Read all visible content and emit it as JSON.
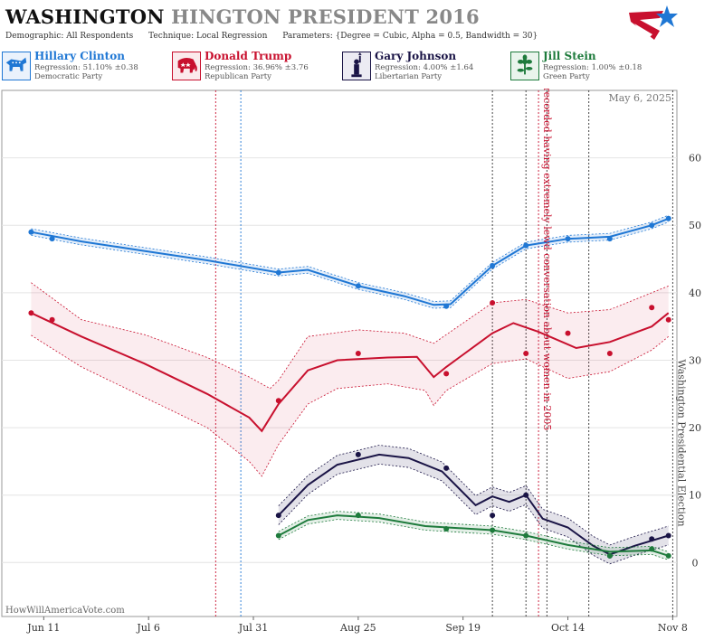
{
  "header": {
    "title_state": "WASHINGTON",
    "title_rest": "HINGTON PRESIDENT 2016",
    "demographic": "Demographic: All Respondents",
    "technique": "Technique: Local Regression",
    "parameters": "Parameters: {Degree = Cubic, Alpha = 0.5, Bandwidth = 30}"
  },
  "candidates": [
    {
      "name": "Hillary Clinton",
      "regression": "Regression: 51.10% ±0.38",
      "party": "Democratic Party",
      "color": "#1f77d4",
      "icon": "donkey-icon"
    },
    {
      "name": "Donald Trump",
      "regression": "Regression: 36.96% ±3.76",
      "party": "Republican Party",
      "color": "#c8102e",
      "icon": "elephant-icon"
    },
    {
      "name": "Gary Johnson",
      "regression": "Regression: 4.00% ±1.64",
      "party": "Libertarian Party",
      "color": "#1a1446",
      "icon": "liberty-icon"
    },
    {
      "name": "Jill Stein",
      "regression": "Regression: 1.00% ±0.18",
      "party": "Green Party",
      "color": "#1e7b3c",
      "icon": "flower-icon"
    }
  ],
  "chart_data": {
    "type": "line",
    "date_label": "May 6, 2025",
    "watermark": "HowWillAmericaVote.com",
    "ylim": [
      -8,
      70
    ],
    "yticks": [
      0,
      10,
      20,
      30,
      40,
      50,
      60
    ],
    "xlim": [
      "2016-06-01",
      "2016-11-09"
    ],
    "xticks": [
      {
        "date": "2016-06-11",
        "label": "Jun 11"
      },
      {
        "date": "2016-07-06",
        "label": "Jul 6"
      },
      {
        "date": "2016-07-31",
        "label": "Jul 31"
      },
      {
        "date": "2016-08-25",
        "label": "Aug 25"
      },
      {
        "date": "2016-09-19",
        "label": "Sep 19"
      },
      {
        "date": "2016-10-14",
        "label": "Oct 14"
      },
      {
        "date": "2016-11-08",
        "label": "Nov 8"
      }
    ],
    "annotations": [
      {
        "date": "2016-10-07",
        "text": "Trump recorded having extremely lewd conversation about women in 2005",
        "color": "#c8102e"
      },
      {
        "date": "2016-11-08",
        "text": "Washington Presidential Election",
        "color": "#444444"
      }
    ],
    "vlines": [
      {
        "date": "2016-07-22",
        "color": "#c8102e"
      },
      {
        "date": "2016-07-28",
        "color": "#1f77d4"
      },
      {
        "date": "2016-09-26",
        "color": "#333333"
      },
      {
        "date": "2016-10-04",
        "color": "#333333"
      },
      {
        "date": "2016-10-07",
        "color": "#c8102e"
      },
      {
        "date": "2016-10-09",
        "color": "#333333"
      },
      {
        "date": "2016-10-19",
        "color": "#333333"
      },
      {
        "date": "2016-11-08",
        "color": "#333333"
      }
    ],
    "series": [
      {
        "name": "Hillary Clinton",
        "color": "#1f77d4",
        "band_fill": "rgba(31,119,212,0.12)",
        "points": [
          [
            "2016-06-08",
            49
          ],
          [
            "2016-06-13",
            48
          ],
          [
            "2016-08-06",
            43
          ],
          [
            "2016-08-25",
            41
          ],
          [
            "2016-09-15",
            38
          ],
          [
            "2016-09-26",
            44
          ],
          [
            "2016-10-04",
            47
          ],
          [
            "2016-10-14",
            48
          ],
          [
            "2016-10-24",
            48
          ],
          [
            "2016-11-03",
            50
          ],
          [
            "2016-11-07",
            51
          ]
        ],
        "trend": [
          [
            "2016-06-08",
            49
          ],
          [
            "2016-06-20",
            47.6
          ],
          [
            "2016-07-05",
            46.2
          ],
          [
            "2016-07-20",
            44.8
          ],
          [
            "2016-08-06",
            43
          ],
          [
            "2016-08-13",
            43.4
          ],
          [
            "2016-08-25",
            41
          ],
          [
            "2016-09-05",
            39.5
          ],
          [
            "2016-09-12",
            38.2
          ],
          [
            "2016-09-16",
            38.3
          ],
          [
            "2016-09-26",
            44
          ],
          [
            "2016-10-04",
            47
          ],
          [
            "2016-10-14",
            48
          ],
          [
            "2016-10-24",
            48.3
          ],
          [
            "2016-11-03",
            50
          ],
          [
            "2016-11-07",
            51
          ]
        ],
        "band": 0.5
      },
      {
        "name": "Donald Trump",
        "color": "#c8102e",
        "band_fill": "rgba(200,16,46,0.08)",
        "points": [
          [
            "2016-06-08",
            37
          ],
          [
            "2016-06-13",
            36
          ],
          [
            "2016-08-06",
            24
          ],
          [
            "2016-08-25",
            31
          ],
          [
            "2016-09-15",
            28
          ],
          [
            "2016-09-26",
            38.5
          ],
          [
            "2016-10-04",
            31
          ],
          [
            "2016-10-14",
            34
          ],
          [
            "2016-10-24",
            31
          ],
          [
            "2016-11-03",
            37.8
          ],
          [
            "2016-11-07",
            36
          ]
        ],
        "trend": [
          [
            "2016-06-08",
            37
          ],
          [
            "2016-06-20",
            33.5
          ],
          [
            "2016-07-05",
            29.5
          ],
          [
            "2016-07-20",
            25
          ],
          [
            "2016-07-30",
            21.5
          ],
          [
            "2016-08-02",
            19.5
          ],
          [
            "2016-08-06",
            23.5
          ],
          [
            "2016-08-13",
            28.5
          ],
          [
            "2016-08-20",
            30
          ],
          [
            "2016-09-01",
            30.4
          ],
          [
            "2016-09-08",
            30.5
          ],
          [
            "2016-09-12",
            27.5
          ],
          [
            "2016-09-15",
            29
          ],
          [
            "2016-09-26",
            34
          ],
          [
            "2016-10-01",
            35.5
          ],
          [
            "2016-10-07",
            34.2
          ],
          [
            "2016-10-16",
            31.8
          ],
          [
            "2016-10-24",
            32.7
          ],
          [
            "2016-11-03",
            35
          ],
          [
            "2016-11-07",
            37
          ]
        ],
        "upper": [
          [
            "2016-06-08",
            41.5
          ],
          [
            "2016-06-20",
            36
          ],
          [
            "2016-07-05",
            33.8
          ],
          [
            "2016-07-20",
            30.4
          ],
          [
            "2016-07-30",
            27.5
          ],
          [
            "2016-08-04",
            25.8
          ],
          [
            "2016-08-06",
            27
          ],
          [
            "2016-08-13",
            33.5
          ],
          [
            "2016-08-25",
            34.5
          ],
          [
            "2016-09-05",
            34
          ],
          [
            "2016-09-12",
            32.5
          ],
          [
            "2016-09-26",
            38.5
          ],
          [
            "2016-10-04",
            39
          ],
          [
            "2016-10-14",
            37
          ],
          [
            "2016-10-24",
            37.5
          ],
          [
            "2016-11-07",
            41
          ]
        ],
        "lower": [
          [
            "2016-06-08",
            33.7
          ],
          [
            "2016-06-20",
            29
          ],
          [
            "2016-07-05",
            24.5
          ],
          [
            "2016-07-20",
            20
          ],
          [
            "2016-07-30",
            15
          ],
          [
            "2016-08-02",
            12.8
          ],
          [
            "2016-08-06",
            17.5
          ],
          [
            "2016-08-13",
            23.5
          ],
          [
            "2016-08-20",
            25.8
          ],
          [
            "2016-09-01",
            26.5
          ],
          [
            "2016-09-10",
            25.5
          ],
          [
            "2016-09-12",
            23.3
          ],
          [
            "2016-09-15",
            25.5
          ],
          [
            "2016-09-26",
            29.5
          ],
          [
            "2016-10-04",
            30.2
          ],
          [
            "2016-10-14",
            27.3
          ],
          [
            "2016-10-24",
            28.3
          ],
          [
            "2016-11-03",
            31.5
          ],
          [
            "2016-11-07",
            33.5
          ]
        ]
      },
      {
        "name": "Gary Johnson",
        "color": "#1a1446",
        "band_fill": "rgba(26,20,70,0.12)",
        "points": [
          [
            "2016-08-06",
            7
          ],
          [
            "2016-08-25",
            16
          ],
          [
            "2016-09-15",
            14
          ],
          [
            "2016-09-26",
            7
          ],
          [
            "2016-10-04",
            10
          ],
          [
            "2016-10-24",
            1
          ],
          [
            "2016-11-03",
            3.5
          ],
          [
            "2016-11-07",
            4
          ]
        ],
        "trend": [
          [
            "2016-08-06",
            7
          ],
          [
            "2016-08-13",
            11.5
          ],
          [
            "2016-08-20",
            14.5
          ],
          [
            "2016-08-30",
            16
          ],
          [
            "2016-09-06",
            15.5
          ],
          [
            "2016-09-14",
            13.5
          ],
          [
            "2016-09-22",
            8.5
          ],
          [
            "2016-09-26",
            9.8
          ],
          [
            "2016-09-30",
            9
          ],
          [
            "2016-10-04",
            10
          ],
          [
            "2016-10-08",
            6.5
          ],
          [
            "2016-10-14",
            5.2
          ],
          [
            "2016-10-20",
            2.5
          ],
          [
            "2016-10-24",
            1.2
          ],
          [
            "2016-10-30",
            2.5
          ],
          [
            "2016-11-07",
            4
          ]
        ],
        "band": 1.4
      },
      {
        "name": "Jill Stein",
        "color": "#1e7b3c",
        "band_fill": "rgba(30,123,60,0.12)",
        "points": [
          [
            "2016-08-06",
            4
          ],
          [
            "2016-08-25",
            7
          ],
          [
            "2016-09-15",
            5
          ],
          [
            "2016-09-26",
            4.8
          ],
          [
            "2016-10-04",
            4
          ],
          [
            "2016-10-24",
            1
          ],
          [
            "2016-11-03",
            2
          ],
          [
            "2016-11-07",
            1
          ]
        ],
        "trend": [
          [
            "2016-08-06",
            4
          ],
          [
            "2016-08-13",
            6.3
          ],
          [
            "2016-08-20",
            7
          ],
          [
            "2016-08-30",
            6.6
          ],
          [
            "2016-09-10",
            5.4
          ],
          [
            "2016-09-26",
            4.8
          ],
          [
            "2016-10-04",
            4
          ],
          [
            "2016-10-14",
            2.6
          ],
          [
            "2016-10-24",
            1.6
          ],
          [
            "2016-11-03",
            1.8
          ],
          [
            "2016-11-07",
            1
          ]
        ],
        "band": 0.6
      }
    ]
  }
}
